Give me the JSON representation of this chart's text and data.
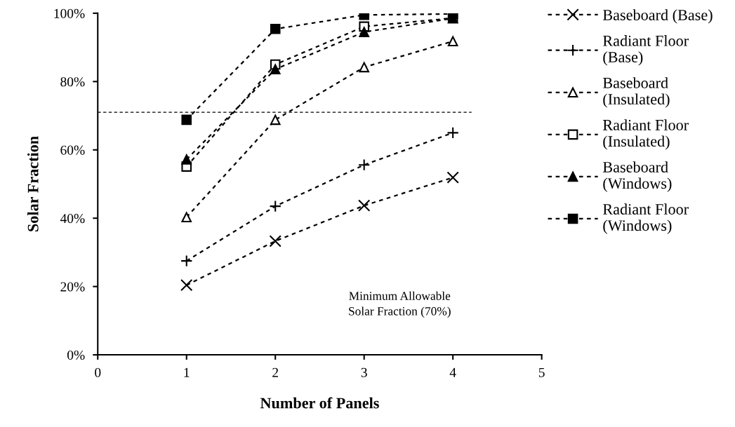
{
  "chart_data": {
    "type": "line",
    "xlabel": "Number of Panels",
    "ylabel": "Solar Fraction",
    "x": [
      1,
      2,
      3,
      4
    ],
    "series": [
      {
        "name": "Baseboard (Base)",
        "color": "#000000",
        "marker": "x",
        "values": [
          20.4,
          33.3,
          43.7,
          51.9
        ]
      },
      {
        "name": "Radiant Floor (Base)",
        "color": "#000000",
        "marker": "plus",
        "values": [
          27.5,
          43.5,
          55.6,
          65.0
        ]
      },
      {
        "name": "Baseboard (Insulated)",
        "color": "#000000",
        "marker": "triangle-open",
        "values": [
          40.3,
          68.8,
          84.2,
          91.8
        ]
      },
      {
        "name": "Radiant Floor (Insulated)",
        "color": "#000000",
        "marker": "square-open",
        "values": [
          55.1,
          85.0,
          96.1,
          98.6
        ]
      },
      {
        "name": "Baseboard (Windows)",
        "color": "#000000",
        "marker": "triangle",
        "values": [
          57.2,
          83.6,
          94.5,
          98.5
        ]
      },
      {
        "name": "Radiant Floor (Windows)",
        "color": "#000000",
        "marker": "square",
        "values": [
          68.8,
          95.4,
          99.5,
          99.8
        ]
      }
    ],
    "line_style": "dotted",
    "xlim": [
      0,
      5
    ],
    "xticks": [
      0,
      1,
      2,
      3,
      4,
      5
    ],
    "ylim": [
      0,
      100
    ],
    "yticks": [
      {
        "value": 0,
        "label": "0%"
      },
      {
        "value": 20,
        "label": "20%"
      },
      {
        "value": 40,
        "label": "40%"
      },
      {
        "value": 60,
        "label": "60%"
      },
      {
        "value": 80,
        "label": "80%"
      },
      {
        "value": 100,
        "label": "100%"
      }
    ],
    "ref_lines": [
      {
        "axis": "y",
        "value": 71,
        "color": "#000000",
        "line_style": "dashed"
      }
    ],
    "annotations": [
      "Minimum Allowable\nSolar Fraction (70%)"
    ],
    "grid": false,
    "legend": "right"
  }
}
